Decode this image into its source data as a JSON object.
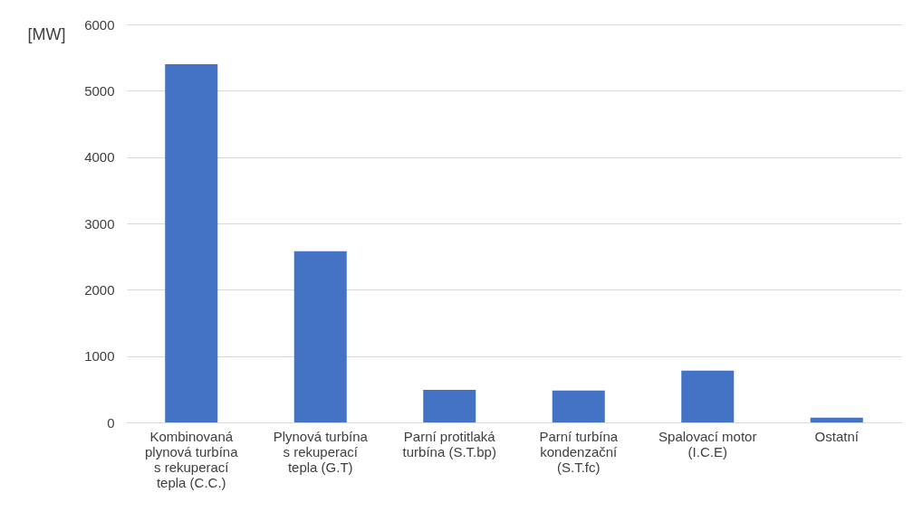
{
  "chart_data": {
    "type": "bar",
    "ylabel": "[MW]",
    "categories": [
      "Kombinovaná plynová turbína s rekuperací tepla (C.C.)",
      "Plynová turbína s rekuperací tepla (G.T)",
      "Parní protitlaká turbína (S.T.bp)",
      "Parní turbína kondenzační (S.T.fc)",
      "Spalovací motor (I.C.E)",
      "Ostatní"
    ],
    "values": [
      5400,
      2580,
      490,
      480,
      780,
      70
    ],
    "color": "#4472c4",
    "ylim": [
      0,
      6000
    ],
    "yticks": [
      0,
      1000,
      2000,
      3000,
      4000,
      5000,
      6000
    ],
    "grid": "y"
  }
}
